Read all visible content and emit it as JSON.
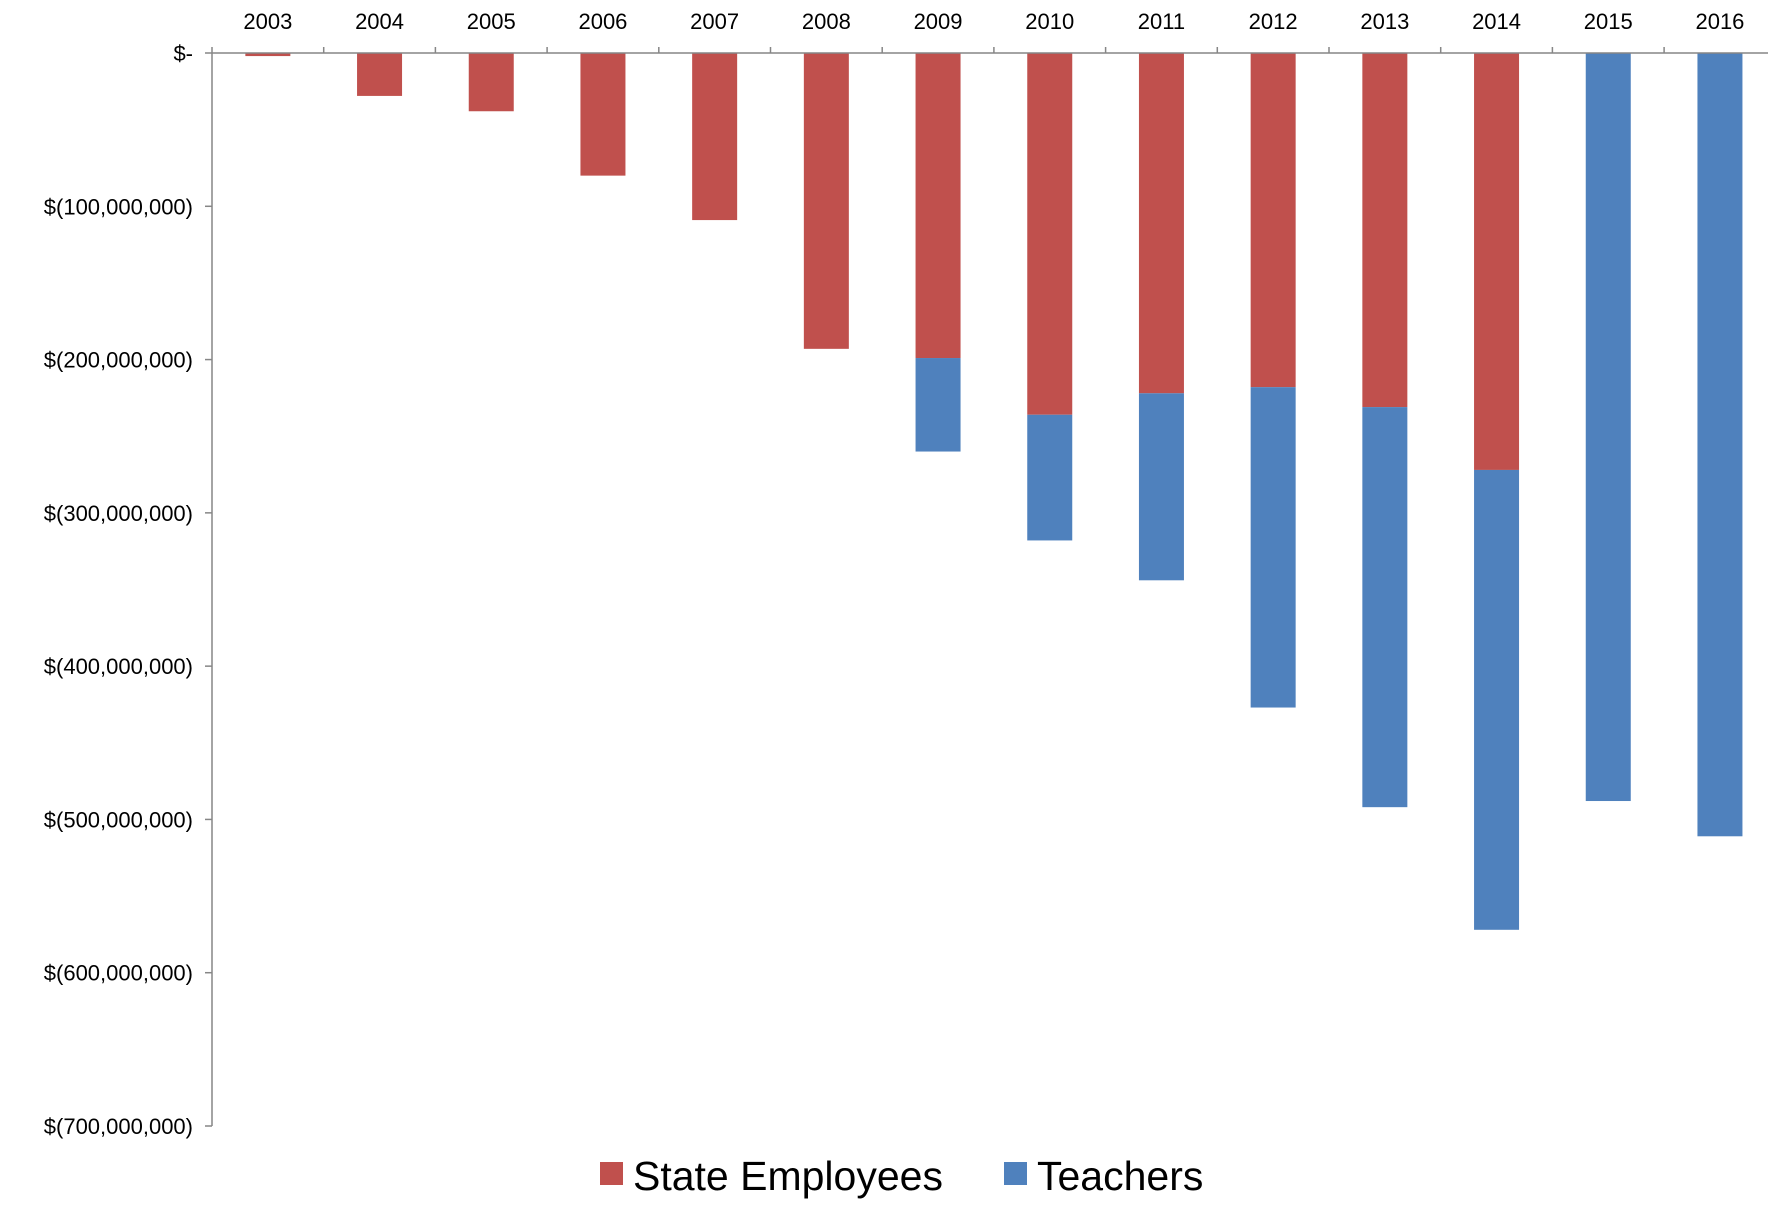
{
  "chart_data": {
    "type": "bar",
    "stacked": true,
    "title": "",
    "xlabel": "",
    "ylabel": "",
    "categories": [
      "2003",
      "2004",
      "2005",
      "2006",
      "2007",
      "2008",
      "2009",
      "2010",
      "2011",
      "2012",
      "2013",
      "2014",
      "2015",
      "2016"
    ],
    "series": [
      {
        "name": "State Employees",
        "color": "#c0504d",
        "values": [
          -2000000,
          -28000000,
          -38000000,
          -80000000,
          -109000000,
          -193000000,
          -199000000,
          -236000000,
          -222000000,
          -218000000,
          -231000000,
          -272000000,
          0,
          0
        ]
      },
      {
        "name": "Teachers",
        "color": "#4f81bd",
        "values": [
          0,
          0,
          0,
          0,
          0,
          0,
          -61000000,
          -82000000,
          -122000000,
          -209000000,
          -261000000,
          -300000000,
          -488000000,
          -511000000
        ]
      }
    ],
    "ylim": [
      -700000000,
      0
    ],
    "y_ticks": [
      0,
      -100000000,
      -200000000,
      -300000000,
      -400000000,
      -500000000,
      -600000000,
      -700000000
    ],
    "y_tick_labels": [
      "$-",
      "$(100,000,000)",
      "$(200,000,000)",
      "$(300,000,000)",
      "$(400,000,000)",
      "$(500,000,000)",
      "$(600,000,000)",
      "$(700,000,000)"
    ],
    "x_axis_position": "top",
    "grid": false,
    "legend_position": "bottom"
  }
}
